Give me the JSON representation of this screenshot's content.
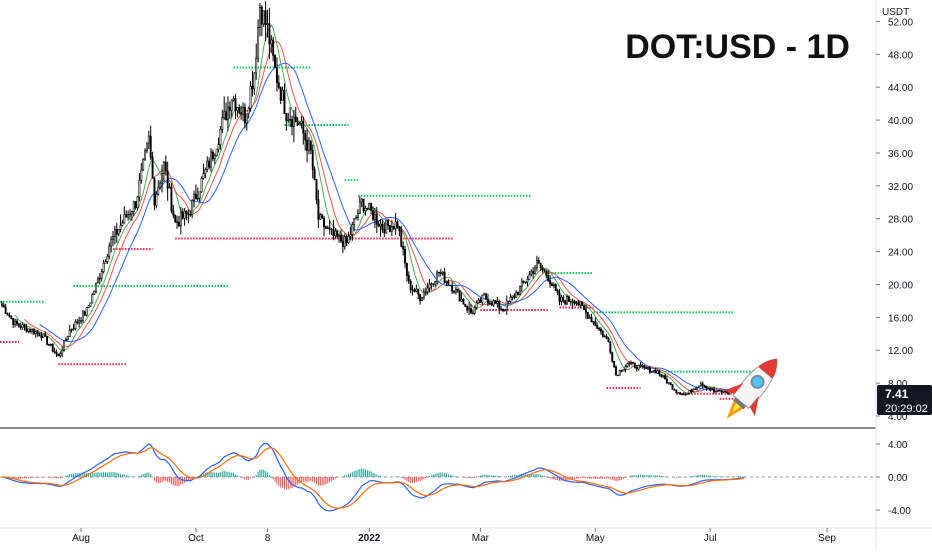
{
  "title": "DOT:USD - 1D",
  "currency": "USDT",
  "price_badge": {
    "price": "7.41",
    "timer": "20:29:02"
  },
  "colors": {
    "up": "#26a69a",
    "down": "#ef5350",
    "candle": "#000000",
    "ma_fast": "#4caf50",
    "ma_mid": "#ef5350",
    "ma_slow": "#2962ff",
    "macd": "#2962ff",
    "signal": "#ff6d00",
    "level_res": "#00c853",
    "level_sup": "#ff1744",
    "badge": "#131722"
  },
  "icons": {
    "rocket": "rocket-icon"
  },
  "chart_data": [
    {
      "type": "candlestick",
      "title": "DOT:USD - 1D",
      "ylabel": "USDT",
      "ylim": [
        4,
        54
      ],
      "y_ticks": [
        "52.00",
        "48.00",
        "44.00",
        "40.00",
        "36.00",
        "32.00",
        "28.00",
        "24.00",
        "20.00",
        "16.00",
        "12.00",
        "8.00",
        "4.00"
      ],
      "x_ticks": [
        "Aug",
        "Oct",
        "8",
        "2022",
        "Mar",
        "May",
        "Jul",
        "Sep"
      ],
      "x_tick_dates": [
        "2021-08-01",
        "2021-10-01",
        "2021-11-08",
        "2022-01-01",
        "2022-03-01",
        "2022-05-01",
        "2022-07-01",
        "2022-09-01"
      ],
      "x_range": [
        "2021-06-19",
        "2022-09-27"
      ],
      "last_date": "2022-07-19",
      "last_price": 7.41,
      "price_anchors": [
        [
          "2021-06-20",
          17.5
        ],
        [
          "2021-06-27",
          15.2
        ],
        [
          "2021-07-04",
          14.6
        ],
        [
          "2021-07-11",
          13.9
        ],
        [
          "2021-07-20",
          11.2
        ],
        [
          "2021-07-26",
          14.4
        ],
        [
          "2021-08-04",
          16.8
        ],
        [
          "2021-08-10",
          20.5
        ],
        [
          "2021-08-16",
          24.8
        ],
        [
          "2021-08-23",
          27.6
        ],
        [
          "2021-08-30",
          30.0
        ],
        [
          "2021-09-06",
          37.5
        ],
        [
          "2021-09-09",
          30.5
        ],
        [
          "2021-09-14",
          34.5
        ],
        [
          "2021-09-20",
          27.5
        ],
        [
          "2021-09-27",
          28.6
        ],
        [
          "2021-10-04",
          32.5
        ],
        [
          "2021-10-10",
          36.0
        ],
        [
          "2021-10-20",
          43.0
        ],
        [
          "2021-10-27",
          40.5
        ],
        [
          "2021-11-01",
          46.0
        ],
        [
          "2021-11-04",
          54.0
        ],
        [
          "2021-11-08",
          51.0
        ],
        [
          "2021-11-12",
          46.0
        ],
        [
          "2021-11-18",
          41.0
        ],
        [
          "2021-11-25",
          39.5
        ],
        [
          "2021-12-01",
          36.0
        ],
        [
          "2021-12-05",
          28.0
        ],
        [
          "2021-12-12",
          26.0
        ],
        [
          "2021-12-20",
          25.0
        ],
        [
          "2021-12-28",
          30.0
        ],
        [
          "2022-01-03",
          28.5
        ],
        [
          "2022-01-08",
          27.0
        ],
        [
          "2022-01-16",
          27.4
        ],
        [
          "2022-01-22",
          20.0
        ],
        [
          "2022-01-28",
          18.5
        ],
        [
          "2022-02-07",
          21.5
        ],
        [
          "2022-02-15",
          19.5
        ],
        [
          "2022-02-24",
          16.5
        ],
        [
          "2022-03-03",
          18.5
        ],
        [
          "2022-03-13",
          17.0
        ],
        [
          "2022-03-22",
          19.5
        ],
        [
          "2022-03-31",
          22.5
        ],
        [
          "2022-04-06",
          21.0
        ],
        [
          "2022-04-12",
          18.0
        ],
        [
          "2022-04-20",
          18.2
        ],
        [
          "2022-04-30",
          15.5
        ],
        [
          "2022-05-08",
          13.0
        ],
        [
          "2022-05-12",
          9.0
        ],
        [
          "2022-05-18",
          10.4
        ],
        [
          "2022-05-26",
          9.8
        ],
        [
          "2022-06-03",
          9.4
        ],
        [
          "2022-06-13",
          7.0
        ],
        [
          "2022-06-18",
          6.6
        ],
        [
          "2022-06-26",
          8.0
        ],
        [
          "2022-07-03",
          7.0
        ],
        [
          "2022-07-10",
          6.9
        ],
        [
          "2022-07-19",
          7.41
        ]
      ],
      "moving_averages": [
        {
          "name": "",
          "period": 8,
          "color": "#4caf50"
        },
        {
          "name": "",
          "period": 13,
          "color": "#ef5350"
        },
        {
          "name": "",
          "period": 21,
          "color": "#2962ff"
        }
      ],
      "levels": [
        {
          "kind": "resistance",
          "value": 17.9,
          "from": "2021-06-19",
          "to": "2021-07-13"
        },
        {
          "kind": "support",
          "value": 13.0,
          "from": "2021-06-19",
          "to": "2021-06-29"
        },
        {
          "kind": "support",
          "value": 10.3,
          "from": "2021-07-20",
          "to": "2021-08-25"
        },
        {
          "kind": "resistance",
          "value": 19.8,
          "from": "2021-07-28",
          "to": "2021-10-18"
        },
        {
          "kind": "support",
          "value": 24.3,
          "from": "2021-08-18",
          "to": "2021-09-08"
        },
        {
          "kind": "support",
          "value": 25.6,
          "from": "2021-09-20",
          "to": "2022-02-15"
        },
        {
          "kind": "resistance",
          "value": 46.4,
          "from": "2021-10-21",
          "to": "2021-12-01"
        },
        {
          "kind": "resistance",
          "value": 39.4,
          "from": "2021-11-17",
          "to": "2021-12-21"
        },
        {
          "kind": "resistance",
          "value": 32.7,
          "from": "2021-12-19",
          "to": "2021-12-26"
        },
        {
          "kind": "resistance",
          "value": 30.8,
          "from": "2021-12-26",
          "to": "2022-03-28"
        },
        {
          "kind": "support",
          "value": 16.9,
          "from": "2022-03-01",
          "to": "2022-04-06"
        },
        {
          "kind": "resistance",
          "value": 21.4,
          "from": "2022-04-03",
          "to": "2022-04-30"
        },
        {
          "kind": "support",
          "value": 17.2,
          "from": "2022-04-12",
          "to": "2022-04-30"
        },
        {
          "kind": "resistance",
          "value": 16.6,
          "from": "2022-04-30",
          "to": "2022-07-14"
        },
        {
          "kind": "support",
          "value": 7.4,
          "from": "2022-05-07",
          "to": "2022-05-25"
        },
        {
          "kind": "resistance",
          "value": 9.4,
          "from": "2022-06-07",
          "to": "2022-07-24"
        },
        {
          "kind": "support",
          "value": 6.7,
          "from": "2022-06-13",
          "to": "2022-07-17"
        },
        {
          "kind": "support",
          "value": 6.1,
          "from": "2022-07-06",
          "to": "2022-07-17"
        }
      ]
    },
    {
      "type": "histogram",
      "indicator": "MACD",
      "ylim": [
        -5.2,
        5.2
      ],
      "y_ticks": [
        "4.00",
        "0.00",
        "-4.00"
      ],
      "zero_line": 0,
      "macd_fast": 12,
      "macd_slow": 26,
      "signal_period": 9
    }
  ]
}
